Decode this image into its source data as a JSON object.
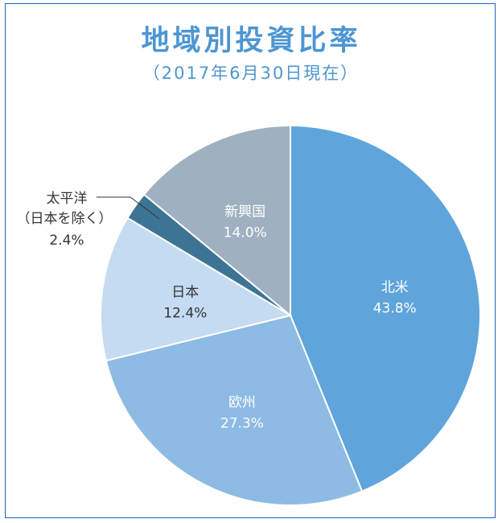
{
  "chart_data": {
    "type": "pie",
    "title": "地域別投資比率",
    "subtitle": "（2017年6月30日現在）",
    "slices": [
      {
        "label": "北米",
        "value": 43.8,
        "value_label": "43.8%",
        "color": "#5fa5db",
        "text_color": "#ffffff"
      },
      {
        "label": "欧州",
        "value": 27.3,
        "value_label": "27.3%",
        "color": "#8dbbe3",
        "text_color": "#ffffff"
      },
      {
        "label": "日本",
        "value": 12.4,
        "value_label": "12.4%",
        "color": "#c4dbf1",
        "text_color": "#333333"
      },
      {
        "label": "太平洋（日本を除く）",
        "value": 2.4,
        "value_label": "2.4%",
        "color": "#3d7493",
        "text_color": "#333333"
      },
      {
        "label": "新興国",
        "value": 14.0,
        "value_label": "14.0%",
        "color": "#9fb1c0",
        "text_color": "#ffffff"
      }
    ],
    "start": "12 o'clock",
    "direction": "clockwise"
  },
  "callout": {
    "line1": "太平洋",
    "line2": "（日本を除く）",
    "line3": "2.4%"
  }
}
